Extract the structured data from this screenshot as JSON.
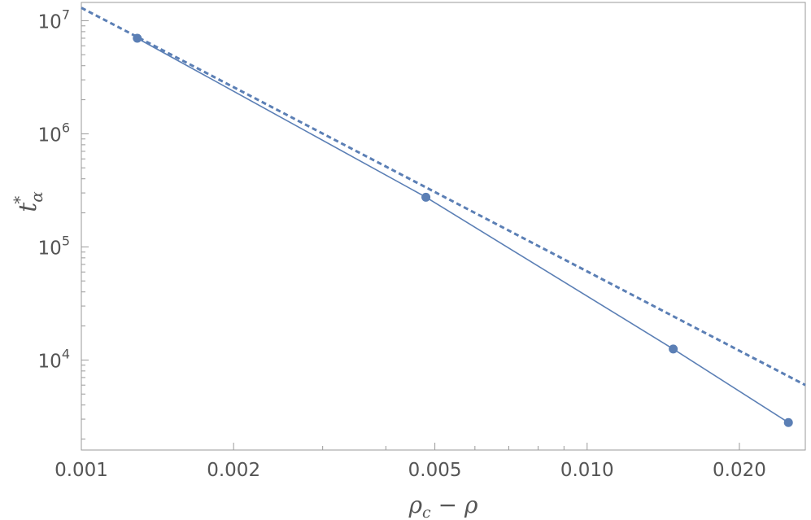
{
  "chart_data": {
    "type": "line",
    "xscale": "log",
    "yscale": "log",
    "xlim": [
      0.001,
      0.027
    ],
    "ylim": [
      1600,
      14500000
    ],
    "grid": false,
    "xlabel": "ρc − ρ",
    "xlabel_main": "ρ",
    "xlabel_sub": "c",
    "xlabel_rest": " − ρ",
    "ylabel": "t*α",
    "ylabel_main": "t",
    "ylabel_sup": "*",
    "ylabel_sub": "α",
    "x_ticks": [
      {
        "value": 0.001,
        "label": "0.001"
      },
      {
        "value": 0.002,
        "label": "0.002"
      },
      {
        "value": 0.005,
        "label": "0.005"
      },
      {
        "value": 0.01,
        "label": "0.010"
      },
      {
        "value": 0.02,
        "label": "0.020"
      }
    ],
    "x_minor_ticks": [
      0.003,
      0.004,
      0.006,
      0.007,
      0.008,
      0.009
    ],
    "y_ticks": [
      {
        "value": 10000,
        "base": "10",
        "exp": "4"
      },
      {
        "value": 100000,
        "base": "10",
        "exp": "5"
      },
      {
        "value": 1000000,
        "base": "10",
        "exp": "6"
      },
      {
        "value": 10000000,
        "base": "10",
        "exp": "7"
      }
    ],
    "series": [
      {
        "style": "solid-with-markers",
        "color": "#5b7fb5",
        "x": [
          0.00129,
          0.0048,
          0.0148,
          0.025
        ],
        "y": [
          7000000,
          275000,
          12500,
          2800
        ]
      },
      {
        "style": "dashed",
        "color": "#5b7fb5",
        "x": [
          0.001,
          0.027
        ],
        "y": [
          13000000,
          6000
        ]
      }
    ]
  }
}
